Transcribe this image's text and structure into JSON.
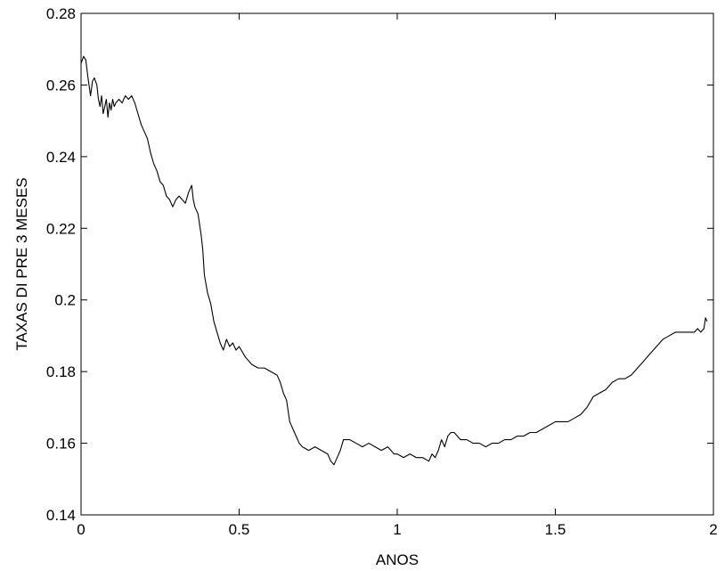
{
  "chart_data": {
    "type": "line",
    "title": "",
    "xlabel": "ANOS",
    "ylabel": "TAXAS DI PRE 3 MESES",
    "xlim": [
      0,
      2
    ],
    "ylim": [
      0.14,
      0.28
    ],
    "xticks": [
      0,
      0.5,
      1,
      1.5,
      2
    ],
    "xtick_labels": [
      "0",
      "0.5",
      "1",
      "1.5",
      "2"
    ],
    "yticks": [
      0.14,
      0.16,
      0.18,
      0.2,
      0.22,
      0.24,
      0.26,
      0.28
    ],
    "ytick_labels": [
      "0.14",
      "0.16",
      "0.18",
      "0.2",
      "0.22",
      "0.24",
      "0.26",
      "0.28"
    ],
    "grid": false,
    "line_color": "#000000",
    "series": [
      {
        "x": [
          0.0,
          0.008,
          0.015,
          0.022,
          0.03,
          0.036,
          0.042,
          0.05,
          0.055,
          0.06,
          0.065,
          0.07,
          0.075,
          0.08,
          0.085,
          0.09,
          0.095,
          0.1,
          0.105,
          0.11,
          0.12,
          0.13,
          0.14,
          0.15,
          0.16,
          0.17,
          0.18,
          0.19,
          0.2,
          0.21,
          0.22,
          0.23,
          0.24,
          0.25,
          0.26,
          0.27,
          0.28,
          0.29,
          0.3,
          0.31,
          0.32,
          0.33,
          0.34,
          0.35,
          0.355,
          0.36,
          0.37,
          0.38,
          0.385,
          0.39,
          0.4,
          0.41,
          0.42,
          0.43,
          0.44,
          0.45,
          0.46,
          0.47,
          0.48,
          0.49,
          0.5,
          0.52,
          0.54,
          0.56,
          0.58,
          0.6,
          0.62,
          0.63,
          0.64,
          0.65,
          0.66,
          0.67,
          0.68,
          0.69,
          0.7,
          0.72,
          0.74,
          0.76,
          0.78,
          0.79,
          0.8,
          0.81,
          0.82,
          0.83,
          0.84,
          0.85,
          0.87,
          0.89,
          0.91,
          0.93,
          0.95,
          0.97,
          0.99,
          1.0,
          1.02,
          1.04,
          1.06,
          1.08,
          1.1,
          1.11,
          1.12,
          1.13,
          1.14,
          1.15,
          1.16,
          1.17,
          1.18,
          1.2,
          1.22,
          1.24,
          1.26,
          1.28,
          1.3,
          1.32,
          1.34,
          1.36,
          1.38,
          1.4,
          1.42,
          1.44,
          1.46,
          1.48,
          1.5,
          1.52,
          1.54,
          1.56,
          1.58,
          1.6,
          1.62,
          1.64,
          1.66,
          1.68,
          1.7,
          1.72,
          1.74,
          1.76,
          1.78,
          1.8,
          1.82,
          1.84,
          1.86,
          1.88,
          1.9,
          1.92,
          1.94,
          1.95,
          1.96,
          1.97,
          1.975,
          1.98
        ],
        "y": [
          0.266,
          0.268,
          0.267,
          0.262,
          0.257,
          0.261,
          0.262,
          0.26,
          0.256,
          0.254,
          0.257,
          0.252,
          0.254,
          0.256,
          0.251,
          0.255,
          0.253,
          0.256,
          0.254,
          0.255,
          0.256,
          0.255,
          0.257,
          0.256,
          0.257,
          0.255,
          0.252,
          0.249,
          0.247,
          0.245,
          0.241,
          0.238,
          0.236,
          0.233,
          0.232,
          0.229,
          0.228,
          0.226,
          0.228,
          0.229,
          0.228,
          0.227,
          0.23,
          0.232,
          0.228,
          0.226,
          0.224,
          0.218,
          0.214,
          0.207,
          0.202,
          0.199,
          0.194,
          0.191,
          0.188,
          0.186,
          0.189,
          0.187,
          0.188,
          0.186,
          0.187,
          0.184,
          0.182,
          0.181,
          0.181,
          0.18,
          0.179,
          0.177,
          0.174,
          0.172,
          0.166,
          0.164,
          0.162,
          0.16,
          0.159,
          0.158,
          0.159,
          0.158,
          0.157,
          0.155,
          0.154,
          0.156,
          0.158,
          0.161,
          0.161,
          0.161,
          0.16,
          0.159,
          0.16,
          0.159,
          0.158,
          0.159,
          0.157,
          0.157,
          0.156,
          0.157,
          0.156,
          0.156,
          0.155,
          0.157,
          0.156,
          0.158,
          0.161,
          0.159,
          0.162,
          0.163,
          0.163,
          0.161,
          0.161,
          0.16,
          0.16,
          0.159,
          0.16,
          0.16,
          0.161,
          0.161,
          0.162,
          0.162,
          0.163,
          0.163,
          0.164,
          0.165,
          0.166,
          0.166,
          0.166,
          0.167,
          0.168,
          0.17,
          0.173,
          0.174,
          0.175,
          0.177,
          0.178,
          0.178,
          0.179,
          0.181,
          0.183,
          0.185,
          0.187,
          0.189,
          0.19,
          0.191,
          0.191,
          0.191,
          0.191,
          0.192,
          0.191,
          0.192,
          0.195,
          0.194
        ]
      }
    ]
  }
}
